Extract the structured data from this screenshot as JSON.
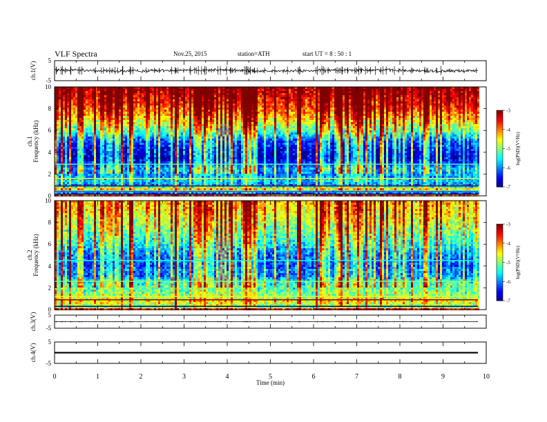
{
  "header": {
    "title": "VLF  Spectra",
    "date": "Nov.25, 2015",
    "station": "station=ATH",
    "start": "start  UT  =   8  : 50 : 1"
  },
  "chart_data": {
    "type": "heatmap",
    "xlabel": "Time  (min)",
    "xlim": [
      0,
      10
    ],
    "xticks": [
      "0",
      "1",
      "2",
      "3",
      "4",
      "5",
      "6",
      "7",
      "8",
      "9",
      "10"
    ],
    "panels": [
      {
        "id": "ch1v",
        "kind": "waveform",
        "ylabel": "ch.1(V)",
        "ylim": [
          -5,
          5
        ],
        "yticks": [
          "5",
          "-5"
        ],
        "level": 0.1,
        "amplitude": 0.6,
        "spikes": 1.4
      },
      {
        "id": "ch1spec",
        "kind": "spectrogram",
        "ylabel": "ch.1\nFrequency  (kHz)",
        "ylim": [
          0,
          10
        ],
        "yticks": [
          "0",
          "2",
          "4",
          "6",
          "8",
          "10"
        ],
        "colorbar": {
          "label": "log(PSD)(V²/Hz)",
          "range": [
            -7,
            -3
          ],
          "ticks": [
            "-3",
            "-4",
            "-5",
            "-6",
            "-7"
          ]
        },
        "profile": [
          [
            0.0,
            -3.0
          ],
          [
            0.3,
            -6.6
          ],
          [
            0.6,
            -4.2
          ],
          [
            1.0,
            -6.2
          ],
          [
            1.4,
            -5.8
          ],
          [
            1.8,
            -6.0
          ],
          [
            2.2,
            -6.0
          ],
          [
            2.5,
            -5.8
          ],
          [
            3.0,
            -6.4
          ],
          [
            3.5,
            -6.8
          ],
          [
            4.0,
            -6.7
          ],
          [
            4.5,
            -6.5
          ],
          [
            5.0,
            -6.3
          ],
          [
            5.5,
            -5.8
          ],
          [
            6.0,
            -5.2
          ],
          [
            6.5,
            -4.9
          ],
          [
            7.0,
            -4.5
          ],
          [
            7.5,
            -4.2
          ],
          [
            8.0,
            -3.9
          ],
          [
            9.0,
            -3.5
          ],
          [
            10.0,
            -3.2
          ]
        ]
      },
      {
        "id": "ch2spec",
        "kind": "spectrogram",
        "ylabel": "ch.2\nFrequency  (kHz)",
        "ylim": [
          0,
          10
        ],
        "yticks": [
          "0",
          "2",
          "4",
          "6",
          "8",
          "10"
        ],
        "colorbar": {
          "label": "log(PSD)(V²/Hz)",
          "range": [
            -7,
            -3
          ],
          "ticks": [
            "-3",
            "-4",
            "-5",
            "-6",
            "-7"
          ]
        },
        "profile": [
          [
            0.0,
            -3.2
          ],
          [
            0.3,
            -5.2
          ],
          [
            0.8,
            -4.6
          ],
          [
            1.2,
            -5.0
          ],
          [
            1.8,
            -5.2
          ],
          [
            2.2,
            -5.3
          ],
          [
            2.8,
            -5.6
          ],
          [
            3.2,
            -6.2
          ],
          [
            3.6,
            -6.0
          ],
          [
            4.0,
            -6.3
          ],
          [
            4.5,
            -6.2
          ],
          [
            5.0,
            -6.1
          ],
          [
            5.5,
            -5.9
          ],
          [
            6.0,
            -5.6
          ],
          [
            6.5,
            -5.4
          ],
          [
            7.0,
            -5.2
          ],
          [
            8.0,
            -4.9
          ],
          [
            9.0,
            -4.6
          ],
          [
            10.0,
            -4.4
          ]
        ]
      },
      {
        "id": "ch3v",
        "kind": "waveform",
        "ylabel": "ch.3(V)",
        "ylim": [
          -5,
          5
        ],
        "yticks": [
          "5",
          "-5"
        ],
        "level": 0.0,
        "amplitude": 0.05,
        "spikes": 0.3
      },
      {
        "id": "ch4v",
        "kind": "waveform",
        "ylabel": "ch.4(V)",
        "ylim": [
          -5,
          5
        ],
        "yticks": [
          "5",
          "-5"
        ],
        "level": 0.0,
        "amplitude": 0.35,
        "spikes": 0.0
      }
    ]
  }
}
